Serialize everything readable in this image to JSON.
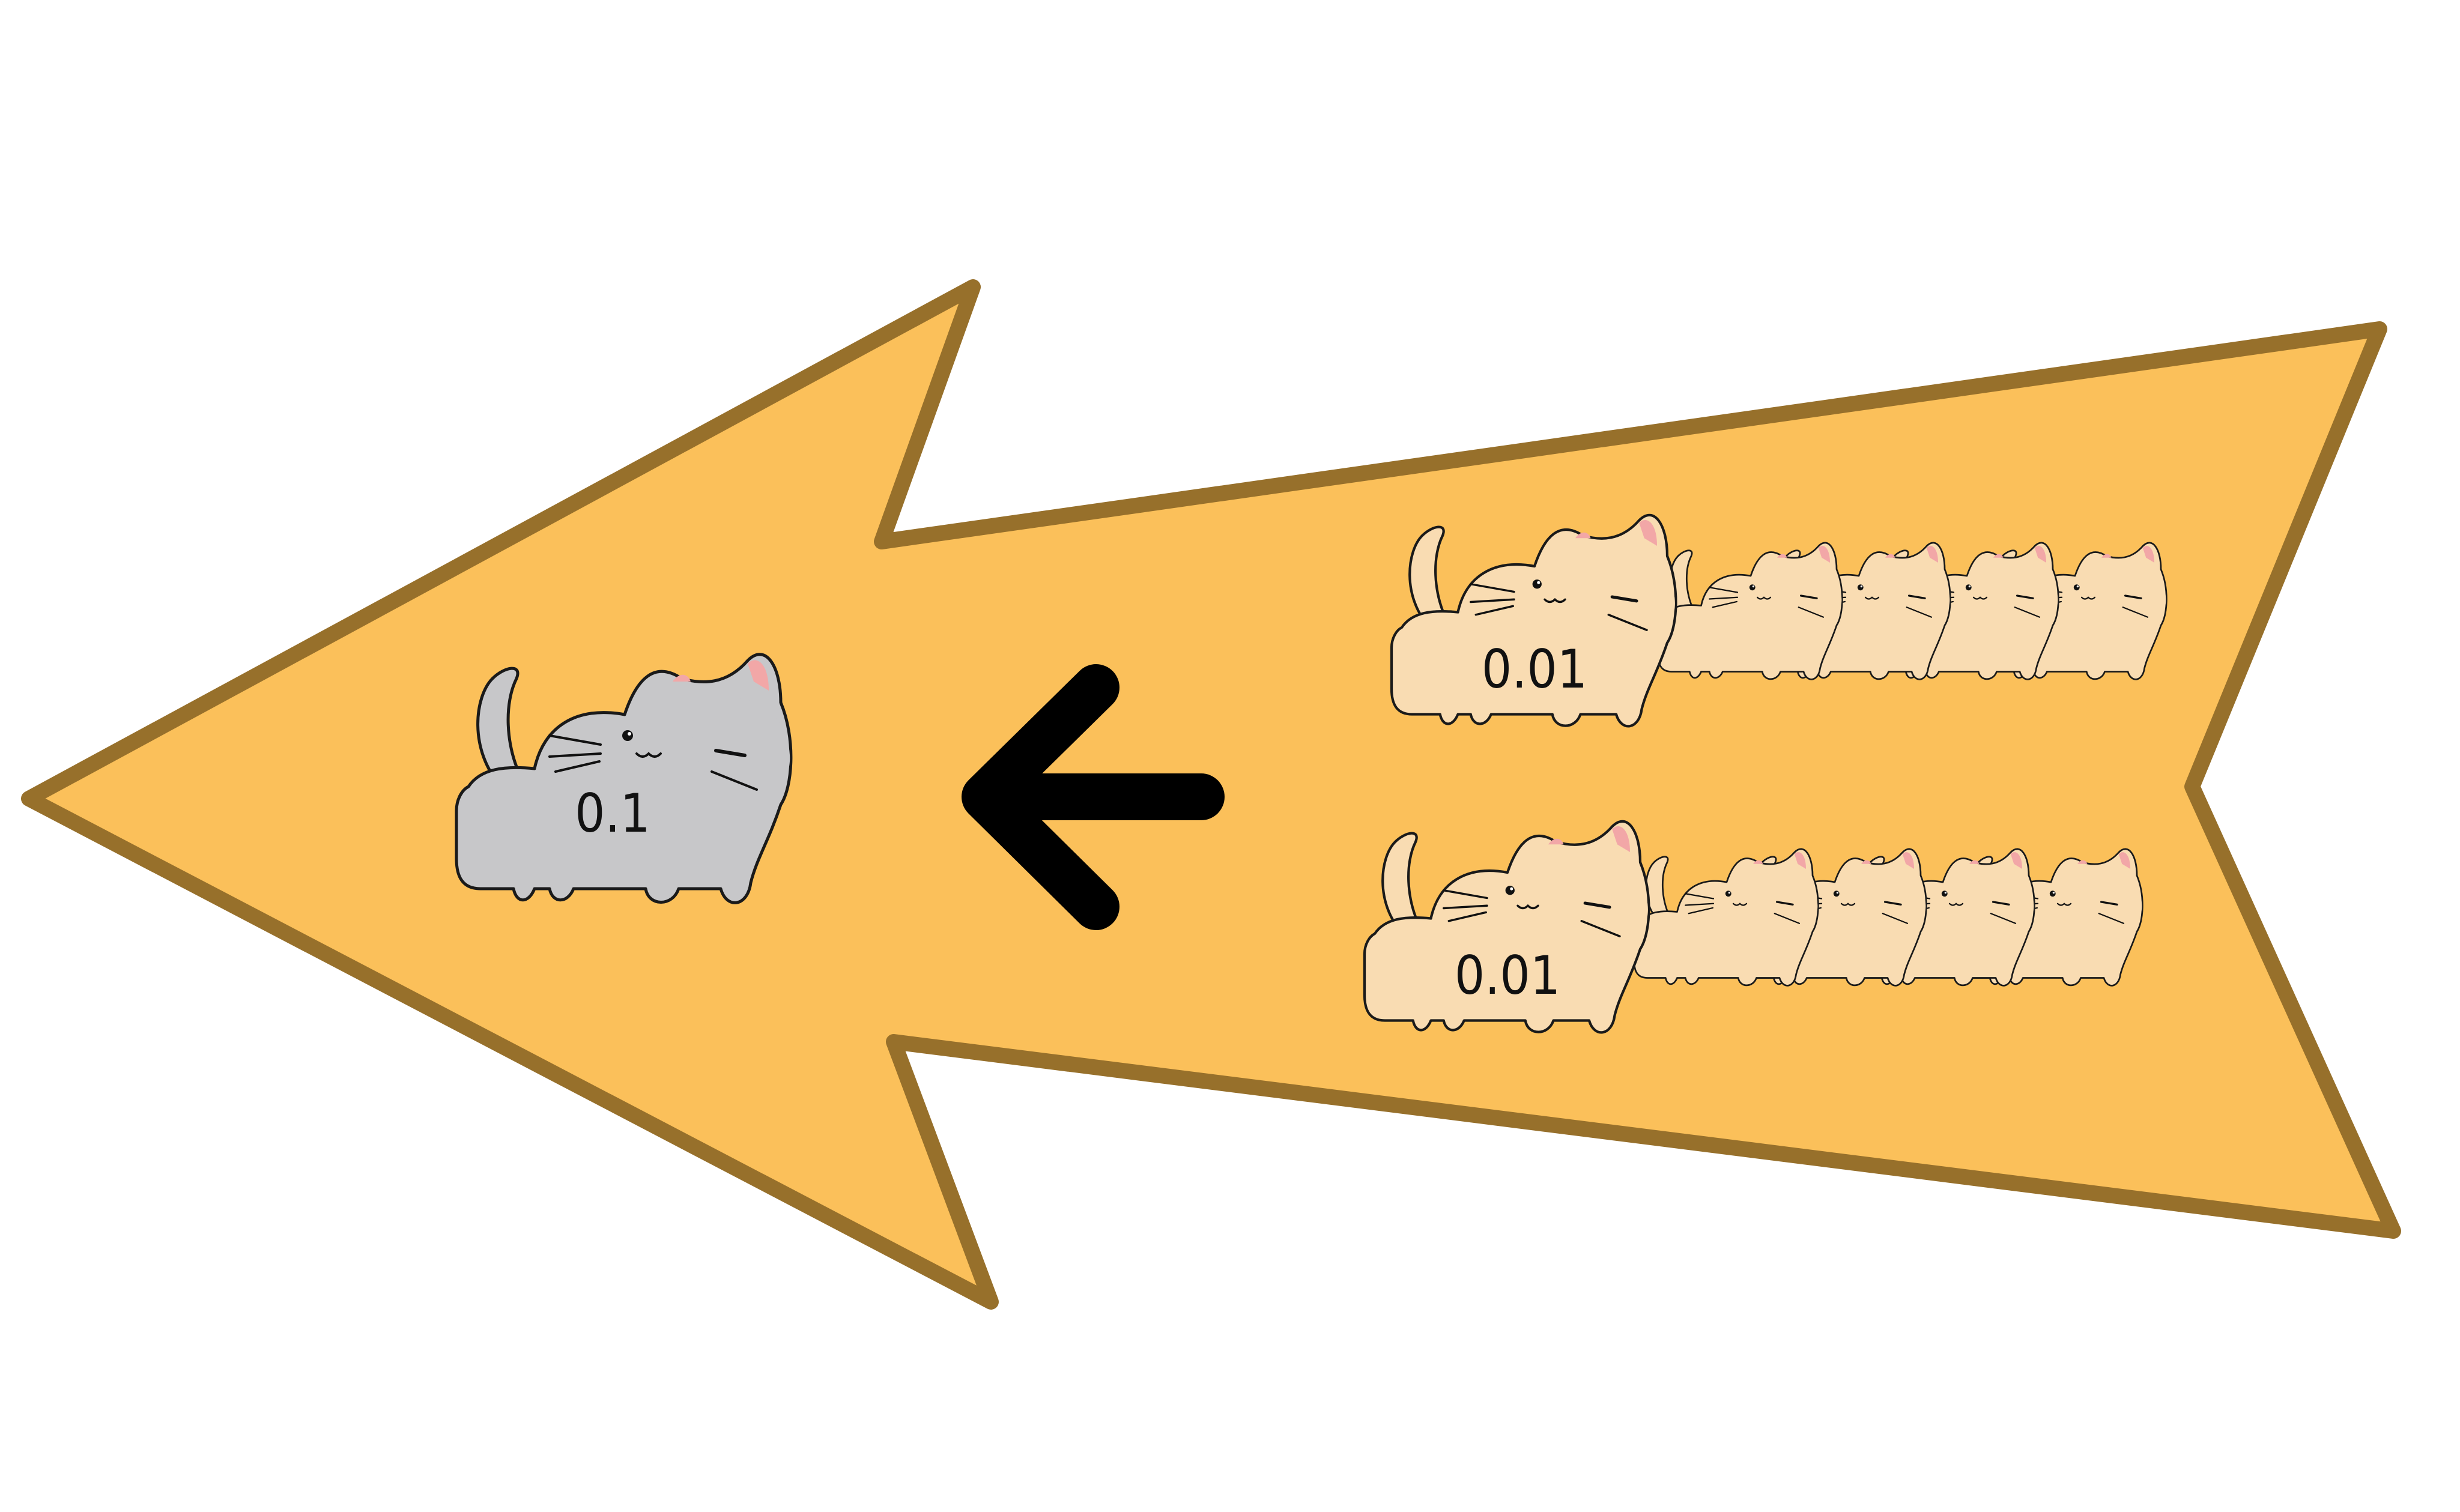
{
  "diagram": {
    "direction": "right-to-left",
    "target": {
      "label": "0.1",
      "icon": "gray-cat-icon",
      "color": "#C7C7C9",
      "patch_color": "#5A4747"
    },
    "sources": [
      {
        "label": "0.01",
        "icon": "calico-cat-icon",
        "count": 5
      },
      {
        "label": "0.01",
        "icon": "calico-cat-icon",
        "count": 5
      }
    ],
    "source_colors": {
      "body": "#F9DCB2",
      "patch": "#F0901C"
    },
    "arrow_icon": "left-arrow-icon",
    "colors": {
      "big_arrow_fill": "#FBC05A",
      "big_arrow_stroke": "#97702B",
      "small_arrow": "#000000"
    }
  }
}
